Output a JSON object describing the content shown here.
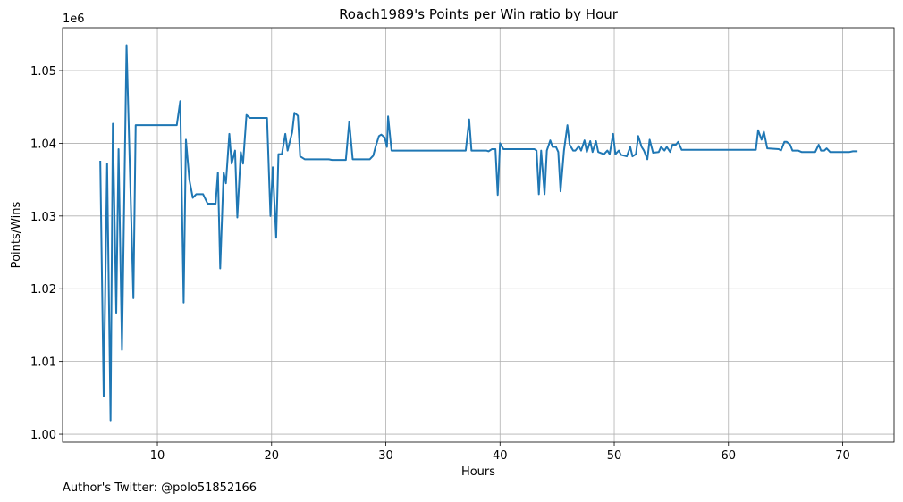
{
  "chart_data": {
    "type": "line",
    "title": "Roach1989's Points per Win ratio by Hour",
    "x_label": "Hours",
    "y_label": "Points/Wins",
    "y_offset_label": "1e6",
    "footnote": "Author's Twitter: @polo51852166",
    "color": "#1f77b4",
    "grid": true,
    "xlim": [
      1.7,
      74.5
    ],
    "ylim": [
      0.9989,
      1.0559
    ],
    "xticks": [
      10,
      20,
      30,
      40,
      50,
      60,
      70
    ],
    "yticks": [
      {
        "value": 1.0,
        "label": "1.00"
      },
      {
        "value": 1.01,
        "label": "1.01"
      },
      {
        "value": 1.02,
        "label": "1.02"
      },
      {
        "value": 1.03,
        "label": "1.03"
      },
      {
        "value": 1.04,
        "label": "1.04"
      },
      {
        "value": 1.05,
        "label": "1.05"
      }
    ],
    "x": [
      5.0,
      5.3,
      5.6,
      5.9,
      6.1,
      6.4,
      6.6,
      6.9,
      7.3,
      7.9,
      8.1,
      11.7,
      12.0,
      12.3,
      12.5,
      12.8,
      13.1,
      13.4,
      14.0,
      14.4,
      15.1,
      15.3,
      15.5,
      15.8,
      16.0,
      16.3,
      16.5,
      16.8,
      17.0,
      17.3,
      17.5,
      17.8,
      18.1,
      19.6,
      19.9,
      20.1,
      20.4,
      20.6,
      20.9,
      21.2,
      21.4,
      21.8,
      22.0,
      22.3,
      22.5,
      22.9,
      25.0,
      25.3,
      26.5,
      26.8,
      27.1,
      28.6,
      28.9,
      29.1,
      29.4,
      29.6,
      29.9,
      30.1,
      30.2,
      30.5,
      30.7,
      37.0,
      37.3,
      37.5,
      38.8,
      39.0,
      39.3,
      39.6,
      39.8,
      40.0,
      40.3,
      43.0,
      43.2,
      43.4,
      43.6,
      43.9,
      44.1,
      44.4,
      44.6,
      44.9,
      45.1,
      45.3,
      45.6,
      45.9,
      46.1,
      46.4,
      46.6,
      46.9,
      47.1,
      47.4,
      47.6,
      47.9,
      48.1,
      48.4,
      48.6,
      49.1,
      49.4,
      49.6,
      49.9,
      50.1,
      50.4,
      50.6,
      51.1,
      51.4,
      51.6,
      51.9,
      52.1,
      52.4,
      52.6,
      52.9,
      53.1,
      53.4,
      53.9,
      54.1,
      54.4,
      54.6,
      54.9,
      55.1,
      55.4,
      55.6,
      55.9,
      62.4,
      62.6,
      62.9,
      63.1,
      63.4,
      64.4,
      64.6,
      64.9,
      65.1,
      65.4,
      65.6,
      66.1,
      66.4,
      67.6,
      67.9,
      68.1,
      68.4,
      68.6,
      68.9,
      70.6,
      70.9,
      71.3
    ],
    "values": [
      1.0376,
      1.0052,
      1.0372,
      1.0019,
      1.0427,
      1.0167,
      1.0392,
      1.0116,
      1.0535,
      1.0187,
      1.0425,
      1.0425,
      1.0458,
      1.0181,
      1.0405,
      1.035,
      1.0325,
      1.033,
      1.033,
      1.0317,
      1.0317,
      1.036,
      1.0228,
      1.036,
      1.0345,
      1.0413,
      1.0372,
      1.039,
      1.0298,
      1.0388,
      1.0372,
      1.0439,
      1.0435,
      1.0435,
      1.03,
      1.0367,
      1.027,
      1.0385,
      1.0385,
      1.0413,
      1.039,
      1.0415,
      1.0442,
      1.0438,
      1.0382,
      1.0378,
      1.0378,
      1.0377,
      1.0377,
      1.043,
      1.0378,
      1.0378,
      1.0383,
      1.0395,
      1.041,
      1.0412,
      1.0408,
      1.0395,
      1.0437,
      1.039,
      1.039,
      1.039,
      1.0433,
      1.039,
      1.039,
      1.0389,
      1.0392,
      1.0392,
      1.0329,
      1.04,
      1.0392,
      1.0392,
      1.039,
      1.033,
      1.039,
      1.033,
      1.039,
      1.0404,
      1.0395,
      1.0395,
      1.0388,
      1.0334,
      1.039,
      1.0425,
      1.0398,
      1.039,
      1.039,
      1.0396,
      1.039,
      1.0404,
      1.0388,
      1.0403,
      1.0388,
      1.0403,
      1.0388,
      1.0385,
      1.039,
      1.0385,
      1.0413,
      1.0385,
      1.039,
      1.0384,
      1.0382,
      1.0395,
      1.0382,
      1.0385,
      1.041,
      1.0395,
      1.039,
      1.0378,
      1.0405,
      1.0387,
      1.0388,
      1.0395,
      1.039,
      1.0395,
      1.0388,
      1.0398,
      1.0398,
      1.0402,
      1.0391,
      1.0391,
      1.0418,
      1.0405,
      1.0416,
      1.0393,
      1.0392,
      1.039,
      1.0402,
      1.0402,
      1.0398,
      1.039,
      1.039,
      1.0388,
      1.0388,
      1.0398,
      1.039,
      1.039,
      1.0393,
      1.0388,
      1.0388,
      1.0389,
      1.0389
    ]
  }
}
